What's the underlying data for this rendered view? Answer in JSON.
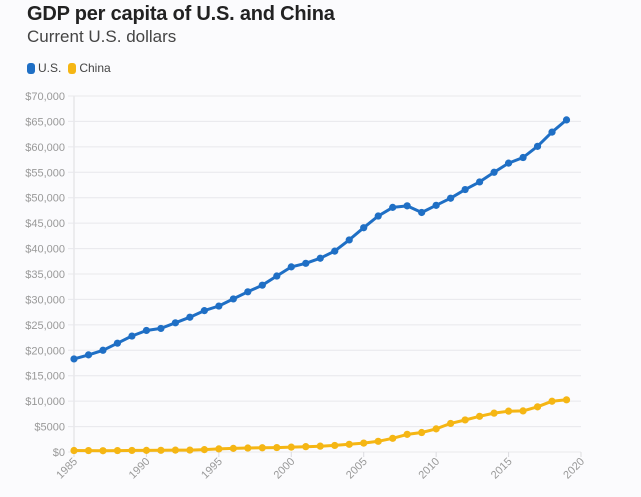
{
  "title": "GDP per capita of U.S. and China",
  "subtitle": "Current U.S. dollars",
  "legend": [
    {
      "label": "U.S.",
      "color": "#1f6fc5"
    },
    {
      "label": "China",
      "color": "#f5b614"
    }
  ],
  "chart_data": {
    "type": "line",
    "title": "GDP per capita of U.S. and China",
    "subtitle": "Current U.S. dollars",
    "xlabel": "",
    "ylabel": "",
    "xlim": [
      1985,
      2020
    ],
    "ylim": [
      0,
      70000
    ],
    "grid": true,
    "legend_position": "top-left",
    "x_ticks": [
      1985,
      1990,
      1995,
      2000,
      2005,
      2010,
      2015,
      2020
    ],
    "x_tick_labels": [
      "1985",
      "1990",
      "1995",
      "2000",
      "2005",
      "2010",
      "2015",
      "2020"
    ],
    "y_ticks": [
      0,
      5000,
      10000,
      15000,
      20000,
      25000,
      30000,
      35000,
      40000,
      45000,
      50000,
      55000,
      60000,
      65000,
      70000
    ],
    "y_tick_labels": [
      "$0",
      "$5000",
      "$10,000",
      "$15,000",
      "$20,000",
      "$25,000",
      "$30,000",
      "$35,000",
      "$40,000",
      "$45,000",
      "$50,000",
      "$55,000",
      "$60,000",
      "$65,000",
      "$70,000"
    ],
    "x": [
      1985,
      1986,
      1987,
      1988,
      1989,
      1990,
      1991,
      1992,
      1993,
      1994,
      1995,
      1996,
      1997,
      1998,
      1999,
      2000,
      2001,
      2002,
      2003,
      2004,
      2005,
      2006,
      2007,
      2008,
      2009,
      2010,
      2011,
      2012,
      2013,
      2014,
      2015,
      2016,
      2017,
      2018,
      2019
    ],
    "series": [
      {
        "name": "U.S.",
        "color": "#1f6fc5",
        "values": [
          18300,
          19100,
          20000,
          21400,
          22800,
          23900,
          24300,
          25400,
          26500,
          27800,
          28700,
          30100,
          31500,
          32800,
          34600,
          36400,
          37100,
          38100,
          39500,
          41700,
          44100,
          46400,
          48100,
          48400,
          47100,
          48500,
          49900,
          51600,
          53100,
          55000,
          56800,
          57900,
          60100,
          62900,
          65300
        ]
      },
      {
        "name": "China",
        "color": "#f5b614",
        "values": [
          290,
          280,
          250,
          280,
          310,
          320,
          330,
          370,
          380,
          470,
          610,
          710,
          780,
          830,
          870,
          960,
          1050,
          1150,
          1290,
          1510,
          1750,
          2100,
          2690,
          3470,
          3830,
          4550,
          5620,
          6300,
          7020,
          7640,
          8030,
          8080,
          8880,
          9980,
          10260
        ]
      }
    ]
  }
}
